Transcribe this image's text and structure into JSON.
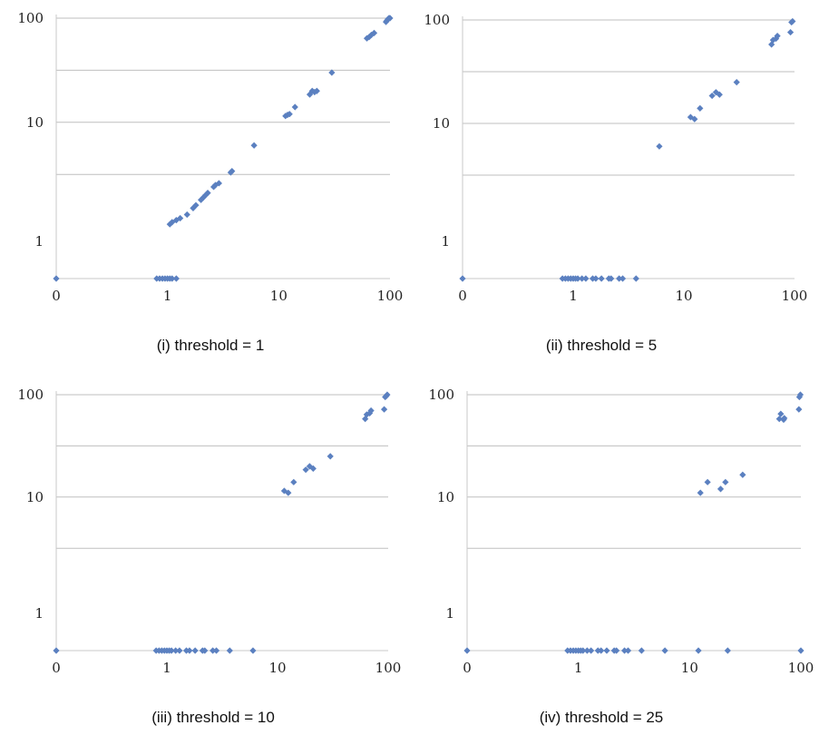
{
  "chart_data": [
    {
      "type": "scatter",
      "caption": "(i) threshold = 1",
      "xscale": "log",
      "yscale": "log",
      "x_ticks": [
        "0",
        "1",
        "10",
        "100"
      ],
      "y_ticks": [
        "1",
        "10",
        "100"
      ],
      "grid": true,
      "color": "#5b80c0",
      "points": [
        [
          0,
          0
        ],
        [
          0.8,
          0
        ],
        [
          0.85,
          0
        ],
        [
          0.9,
          0
        ],
        [
          0.95,
          0
        ],
        [
          1,
          0
        ],
        [
          1.05,
          0
        ],
        [
          1.1,
          0
        ],
        [
          1.2,
          0
        ],
        [
          1.05,
          1.05
        ],
        [
          1.1,
          1.1
        ],
        [
          1.2,
          1.15
        ],
        [
          1.3,
          1.2
        ],
        [
          1.5,
          1.3
        ],
        [
          1.7,
          1.5
        ],
        [
          1.8,
          1.6
        ],
        [
          2,
          1.8
        ],
        [
          2.1,
          1.9
        ],
        [
          2.2,
          2
        ],
        [
          2.3,
          2.1
        ],
        [
          2.6,
          2.4
        ],
        [
          2.7,
          2.5
        ],
        [
          2.9,
          2.6
        ],
        [
          3.7,
          3.3
        ],
        [
          3.8,
          3.4
        ],
        [
          6,
          6
        ],
        [
          11.5,
          11.5
        ],
        [
          12,
          11.8
        ],
        [
          12.5,
          12
        ],
        [
          14,
          14
        ],
        [
          19,
          18.5
        ],
        [
          20,
          20
        ],
        [
          21,
          19.5
        ],
        [
          22,
          20
        ],
        [
          30,
          30
        ],
        [
          62,
          64
        ],
        [
          65,
          66
        ],
        [
          68,
          69
        ],
        [
          72,
          72
        ],
        [
          92,
          92
        ],
        [
          94,
          95
        ],
        [
          96,
          98
        ],
        [
          98,
          100
        ],
        [
          100,
          100
        ]
      ]
    },
    {
      "type": "scatter",
      "caption": "(ii) threshold = 5",
      "xscale": "log",
      "yscale": "log",
      "x_ticks": [
        "0",
        "1",
        "10",
        "100"
      ],
      "y_ticks": [
        "1",
        "10",
        "100"
      ],
      "grid": true,
      "color": "#5b80c0",
      "points": [
        [
          0,
          0
        ],
        [
          0.8,
          0
        ],
        [
          0.85,
          0
        ],
        [
          0.9,
          0
        ],
        [
          0.95,
          0
        ],
        [
          1,
          0
        ],
        [
          1.05,
          0
        ],
        [
          1.1,
          0
        ],
        [
          1.2,
          0
        ],
        [
          1.3,
          0
        ],
        [
          1.5,
          0
        ],
        [
          1.6,
          0
        ],
        [
          1.8,
          0
        ],
        [
          2.1,
          0
        ],
        [
          2.2,
          0
        ],
        [
          2.6,
          0
        ],
        [
          2.8,
          0
        ],
        [
          3.7,
          0
        ],
        [
          6,
          6
        ],
        [
          11.5,
          11.5
        ],
        [
          12.5,
          11
        ],
        [
          14,
          14
        ],
        [
          18,
          18.5
        ],
        [
          19.5,
          20
        ],
        [
          21,
          19
        ],
        [
          30,
          25
        ],
        [
          62,
          58
        ],
        [
          64,
          64
        ],
        [
          68,
          66
        ],
        [
          70,
          70
        ],
        [
          92,
          76
        ],
        [
          94,
          95
        ],
        [
          96,
          97
        ]
      ]
    },
    {
      "type": "scatter",
      "caption": "(iii) threshold = 10",
      "xscale": "log",
      "yscale": "log",
      "x_ticks": [
        "0",
        "1",
        "10",
        "100"
      ],
      "y_ticks": [
        "1",
        "10",
        "100"
      ],
      "grid": true,
      "color": "#5b80c0",
      "points": [
        [
          0,
          0
        ],
        [
          0.8,
          0
        ],
        [
          0.85,
          0
        ],
        [
          0.9,
          0
        ],
        [
          0.95,
          0
        ],
        [
          1,
          0
        ],
        [
          1.05,
          0
        ],
        [
          1.1,
          0
        ],
        [
          1.2,
          0
        ],
        [
          1.3,
          0
        ],
        [
          1.5,
          0
        ],
        [
          1.6,
          0
        ],
        [
          1.8,
          0
        ],
        [
          2.1,
          0
        ],
        [
          2.2,
          0
        ],
        [
          2.6,
          0
        ],
        [
          2.8,
          0
        ],
        [
          3.7,
          0
        ],
        [
          6,
          0
        ],
        [
          11.5,
          11.5
        ],
        [
          12.5,
          11
        ],
        [
          14,
          14
        ],
        [
          18,
          18.5
        ],
        [
          19.5,
          20
        ],
        [
          21,
          19
        ],
        [
          30,
          25
        ],
        [
          62,
          58
        ],
        [
          64,
          64
        ],
        [
          68,
          66
        ],
        [
          70,
          70
        ],
        [
          92,
          72
        ],
        [
          94,
          95
        ],
        [
          96,
          97
        ],
        [
          98,
          100
        ]
      ]
    },
    {
      "type": "scatter",
      "caption": "(iv) threshold = 25",
      "xscale": "log",
      "yscale": "log",
      "x_ticks": [
        "0",
        "1",
        "10",
        "100"
      ],
      "y_ticks": [
        "1",
        "10",
        "100"
      ],
      "grid": true,
      "color": "#5b80c0",
      "points": [
        [
          0,
          0
        ],
        [
          0.8,
          0
        ],
        [
          0.85,
          0
        ],
        [
          0.9,
          0
        ],
        [
          0.95,
          0
        ],
        [
          1,
          0
        ],
        [
          1.05,
          0
        ],
        [
          1.1,
          0
        ],
        [
          1.2,
          0
        ],
        [
          1.3,
          0
        ],
        [
          1.5,
          0
        ],
        [
          1.6,
          0
        ],
        [
          1.8,
          0
        ],
        [
          2.1,
          0
        ],
        [
          2.2,
          0
        ],
        [
          2.6,
          0
        ],
        [
          2.8,
          0
        ],
        [
          3.7,
          0
        ],
        [
          6,
          0
        ],
        [
          12,
          0
        ],
        [
          22,
          0
        ],
        [
          100,
          0
        ],
        [
          12.5,
          11
        ],
        [
          14.5,
          14
        ],
        [
          19,
          12
        ],
        [
          21,
          14
        ],
        [
          30,
          16.5
        ],
        [
          64,
          58
        ],
        [
          66,
          65
        ],
        [
          70,
          57
        ],
        [
          71,
          59
        ],
        [
          96,
          72
        ],
        [
          97,
          95
        ],
        [
          99,
          100
        ]
      ]
    }
  ]
}
